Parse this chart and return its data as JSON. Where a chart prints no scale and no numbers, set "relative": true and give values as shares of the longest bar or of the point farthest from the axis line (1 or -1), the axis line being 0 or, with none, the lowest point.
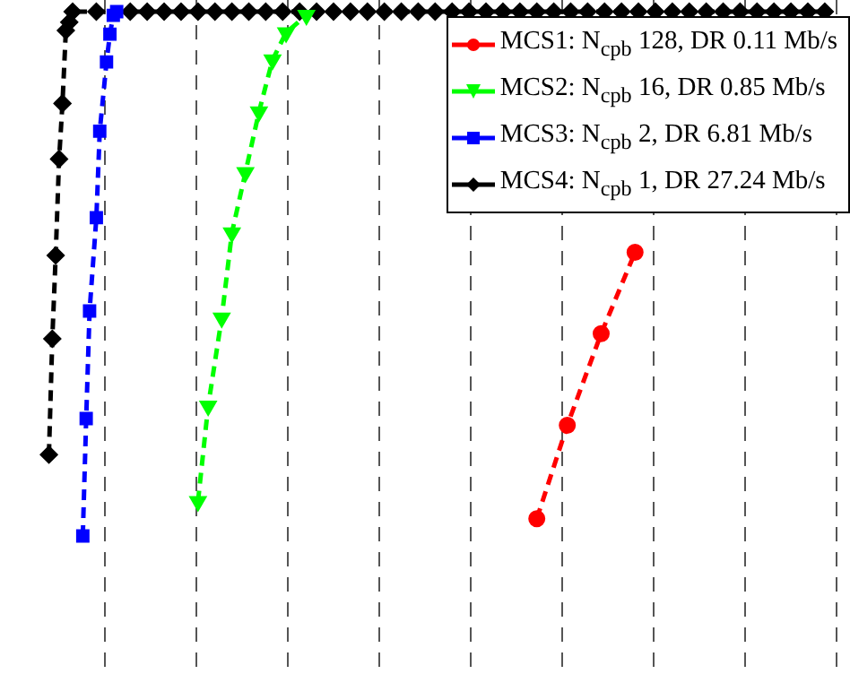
{
  "chart_data": {
    "type": "line",
    "relative": true,
    "tick_labels": false,
    "grid": "x",
    "legend": "top right",
    "line_style": "dashed",
    "categories": [
      null,
      null,
      null,
      null,
      null,
      null,
      null,
      null,
      null,
      null,
      null,
      null,
      null,
      null,
      null,
      null,
      null,
      null,
      null,
      null,
      null,
      null,
      null,
      null,
      null,
      null,
      null,
      null,
      null,
      null,
      null,
      null,
      null,
      null,
      null,
      null,
      null,
      null,
      null,
      null,
      null,
      null,
      null,
      null,
      null,
      null,
      null,
      null,
      null,
      null,
      null,
      null,
      null,
      null,
      null,
      null,
      null,
      null,
      null,
      null,
      null,
      null,
      null,
      null,
      null,
      null,
      null,
      null,
      null,
      null,
      null,
      null,
      null,
      null,
      null,
      null,
      null,
      null,
      null,
      null,
      null,
      null,
      null,
      null,
      null,
      null,
      null,
      null,
      null,
      null,
      null,
      null,
      null,
      null,
      null,
      null,
      null,
      null,
      null,
      null,
      null,
      null,
      null,
      null,
      null,
      null,
      null,
      null,
      null,
      null,
      null,
      null,
      null,
      null,
      null,
      null,
      null,
      null,
      null,
      null,
      null,
      null,
      null,
      null,
      null,
      null,
      null,
      null,
      null,
      null,
      null,
      null,
      null,
      null,
      null,
      null,
      null,
      null,
      null,
      null,
      null,
      null,
      null,
      null,
      null,
      null,
      null,
      null,
      null,
      null,
      null,
      null,
      null,
      null,
      null,
      null,
      null,
      null,
      null,
      null,
      null,
      null,
      null,
      null,
      null,
      null,
      null,
      null,
      null,
      null,
      null,
      null,
      null,
      null,
      null,
      null,
      null,
      null,
      null,
      null,
      null,
      null,
      null,
      null,
      null,
      null,
      null,
      null,
      null,
      null,
      null,
      null,
      null,
      null,
      null,
      null,
      null,
      null,
      null,
      null,
      null,
      null,
      null,
      null,
      null,
      null,
      null,
      null,
      null,
      null,
      null,
      null,
      null,
      null,
      null,
      null,
      null,
      null,
      null,
      null,
      null,
      null,
      null,
      null,
      null,
      null,
      null,
      null,
      null,
      null,
      null,
      null,
      null,
      null,
      null,
      null,
      null,
      null,
      null,
      null,
      null,
      null,
      null,
      null,
      null
    ],
    "series": [
      {
        "name": "MCS1: N$_{cpb}$ 128, DR 0.11 Mb/s",
        "color": "#ff0000",
        "marker": "circle",
        "values": [
          null,
          null,
          null,
          null,
          null,
          null,
          null,
          null,
          null,
          null,
          null,
          null,
          null,
          null,
          null,
          null,
          null,
          null,
          null,
          null,
          null,
          null,
          null,
          null,
          null,
          null,
          null,
          null,
          null,
          null,
          null,
          null,
          null,
          null,
          null,
          null,
          null,
          null,
          null,
          null,
          null,
          null,
          null,
          null,
          null,
          null,
          null,
          null,
          null,
          null,
          null,
          null,
          null,
          null,
          null,
          null,
          null,
          null,
          null,
          null,
          null,
          null,
          null,
          null,
          null,
          null,
          null,
          null,
          null,
          null,
          null,
          null,
          null,
          null,
          null,
          null,
          null,
          null,
          null,
          null,
          null,
          null,
          null,
          null,
          null,
          null,
          null,
          null,
          null,
          null,
          null,
          null,
          null,
          null,
          null,
          null,
          null,
          null,
          null,
          null,
          null,
          null,
          null,
          null,
          null,
          null,
          null,
          null,
          null,
          null,
          null,
          null,
          null,
          null,
          null,
          null,
          null,
          null,
          null,
          null,
          null,
          null,
          null,
          null,
          null,
          null,
          null,
          null,
          null,
          null,
          null,
          null,
          null,
          null,
          null,
          null,
          null,
          null,
          null,
          null,
          null,
          null,
          null,
          null,
          null,
          null,
          null,
          null,
          null,
          null,
          null,
          null,
          null,
          null,
          null,
          0.033,
          null,
          null,
          null,
          null,
          null,
          null,
          null,
          null,
          0.211,
          null,
          null,
          null,
          null,
          null,
          null,
          null,
          null,
          null,
          0.386,
          null,
          null,
          null,
          null,
          null,
          null,
          null,
          null,
          null,
          0.541,
          null,
          null,
          null,
          null,
          null,
          null,
          null,
          null,
          null,
          null,
          null,
          null,
          null,
          null,
          null,
          null,
          null,
          null,
          null,
          null,
          null,
          null,
          null,
          null,
          null,
          null,
          null,
          null,
          null,
          null,
          null,
          null,
          null,
          null,
          null,
          null,
          null,
          null,
          null,
          null,
          null,
          null,
          null,
          null,
          null,
          null,
          null,
          null,
          null,
          null,
          null,
          null,
          null,
          null,
          null,
          null,
          null,
          null,
          null,
          null
        ]
      },
      {
        "name": "MCS2: N$_{cpb}$ 16, DR 0.85 Mb/s",
        "color": "#00ff00",
        "marker": "triangle",
        "values": [
          null,
          null,
          null,
          null,
          null,
          null,
          null,
          null,
          null,
          null,
          null,
          null,
          null,
          null,
          null,
          null,
          null,
          null,
          null,
          null,
          null,
          null,
          null,
          null,
          null,
          null,
          null,
          null,
          null,
          null,
          null,
          null,
          null,
          null,
          null,
          null,
          null,
          null,
          null,
          null,
          null,
          null,
          null,
          null,
          null,
          null,
          null,
          null,
          null,
          null,
          null,
          null,
          null,
          null,
          null,
          0.066,
          null,
          null,
          0.248,
          null,
          null,
          null,
          0.416,
          null,
          null,
          0.578,
          null,
          null,
          null,
          0.693,
          null,
          null,
          null,
          0.809,
          null,
          null,
          null,
          0.908,
          null,
          null,
          null,
          0.96,
          null,
          null,
          null,
          null,
          null,
          0.993,
          null,
          null,
          null,
          null,
          null,
          null,
          null,
          null,
          null,
          null,
          null,
          null,
          null,
          null,
          null,
          null,
          null,
          null,
          null,
          null,
          null,
          null,
          null,
          null,
          null,
          null,
          null,
          null,
          null,
          null,
          null,
          null,
          null,
          null,
          null,
          null,
          null,
          null,
          null,
          null,
          null,
          null,
          null,
          null,
          null,
          null,
          null,
          null,
          null,
          null,
          null,
          null,
          null,
          null,
          null,
          null,
          null,
          null,
          null,
          null,
          null,
          null,
          null,
          null,
          null,
          null,
          null,
          null,
          null,
          null,
          null,
          null,
          null,
          null,
          null,
          null,
          null,
          null,
          null,
          null,
          null,
          null,
          null,
          null,
          null,
          null,
          null,
          null,
          null,
          null,
          null,
          null,
          null,
          null,
          null,
          null,
          null,
          null,
          null,
          null,
          null,
          null,
          null,
          null,
          null,
          null,
          null,
          null,
          null,
          null,
          null,
          null,
          null,
          null,
          null,
          null,
          null,
          null,
          null,
          null,
          null,
          null,
          null,
          null,
          null,
          null,
          null,
          null,
          null,
          null,
          null,
          null,
          null,
          null,
          null,
          null,
          null,
          null,
          null,
          null,
          null,
          null,
          null,
          null,
          null,
          null,
          null,
          null,
          null,
          null,
          null,
          null,
          null,
          null,
          null,
          null,
          null
        ]
      },
      {
        "name": "MCS3: N$_{cpb}$ 2, DR 6.81 Mb/s",
        "color": "#0000ff",
        "marker": "square",
        "values": [
          null,
          null,
          null,
          null,
          null,
          null,
          null,
          null,
          null,
          null,
          null,
          null,
          null,
          null,
          null,
          null,
          null,
          null,
          null,
          null,
          null,
          0,
          0.224,
          0.429,
          null,
          0.607,
          0.772,
          null,
          0.904,
          0.957,
          0.993,
          1,
          null,
          null,
          null,
          null,
          null,
          null,
          null,
          null,
          null,
          null,
          null,
          null,
          null,
          null,
          null,
          null,
          null,
          null,
          null,
          null,
          null,
          null,
          null,
          null,
          null,
          null,
          null,
          null,
          null,
          null,
          null,
          null,
          null,
          null,
          null,
          null,
          null,
          null,
          null,
          null,
          null,
          null,
          null,
          null,
          null,
          null,
          null,
          null,
          null,
          null,
          null,
          null,
          null,
          null,
          null,
          null,
          null,
          null,
          null,
          null,
          null,
          null,
          null,
          null,
          null,
          null,
          null,
          null,
          null,
          null,
          null,
          null,
          null,
          null,
          null,
          null,
          null,
          null,
          null,
          null,
          null,
          null,
          null,
          null,
          null,
          null,
          null,
          null,
          null,
          null,
          null,
          null,
          null,
          null,
          null,
          null,
          null,
          null,
          null,
          null,
          null,
          null,
          null,
          null,
          null,
          null,
          null,
          null,
          null,
          null,
          null,
          null,
          null,
          null,
          null,
          null,
          null,
          null,
          null,
          null,
          null,
          null,
          null,
          null,
          null,
          null,
          null,
          null,
          null,
          null,
          null,
          null,
          null,
          null,
          null,
          null,
          null,
          null,
          null,
          null,
          null,
          null,
          null,
          null,
          null,
          null,
          null,
          null,
          null,
          null,
          null,
          null,
          null,
          null,
          null,
          null,
          null,
          null,
          null,
          null,
          null,
          null,
          null,
          null,
          null,
          null,
          null,
          null,
          null,
          null,
          null,
          null,
          null,
          null,
          null,
          null,
          null,
          null,
          null,
          null,
          null,
          null,
          null,
          null,
          null,
          null,
          null,
          null,
          null,
          null,
          null,
          null,
          null,
          null,
          null,
          null,
          null,
          null,
          null,
          null,
          null,
          null,
          null,
          null,
          null,
          null,
          null,
          null,
          null,
          null,
          null,
          null,
          null
        ]
      },
      {
        "name": "MCS4: N$_{cpb}$ 1, DR 27.24 Mb/s",
        "color": "#000000",
        "marker": "diamond",
        "values": [
          null,
          null,
          null,
          null,
          null,
          null,
          null,
          null,
          null,
          null,
          null,
          0.155,
          0.376,
          0.535,
          0.719,
          0.825,
          0.964,
          0.98,
          1,
          null,
          null,
          null,
          null,
          null,
          null,
          1,
          null,
          null,
          null,
          null,
          null,
          null,
          null,
          null,
          null,
          1,
          null,
          null,
          null,
          null,
          1,
          null,
          null,
          null,
          null,
          1,
          null,
          null,
          null,
          null,
          1,
          null,
          null,
          null,
          null,
          1,
          null,
          null,
          null,
          null,
          1,
          null,
          null,
          null,
          null,
          1,
          null,
          null,
          null,
          null,
          1,
          null,
          null,
          null,
          null,
          1,
          null,
          null,
          null,
          null,
          1,
          null,
          null,
          null,
          null,
          1,
          null,
          null,
          null,
          null,
          1,
          null,
          null,
          null,
          null,
          1,
          null,
          null,
          null,
          null,
          1,
          null,
          null,
          null,
          null,
          1,
          null,
          null,
          null,
          null,
          1,
          null,
          null,
          null,
          null,
          1,
          null,
          null,
          null,
          null,
          1,
          null,
          null,
          null,
          null,
          1,
          null,
          null,
          null,
          null,
          1,
          null,
          null,
          null,
          null,
          1,
          null,
          null,
          null,
          null,
          1,
          null,
          null,
          null,
          null,
          1,
          null,
          null,
          null,
          null,
          1,
          null,
          null,
          null,
          null,
          1,
          null,
          null,
          null,
          null,
          1,
          null,
          null,
          null,
          null,
          1,
          null,
          null,
          null,
          null,
          1,
          null,
          null,
          null,
          null,
          1,
          null,
          null,
          null,
          null,
          1,
          null,
          null,
          null,
          null,
          1,
          null,
          null,
          null,
          null,
          1,
          null,
          null,
          null,
          null,
          1,
          null,
          null,
          null,
          null,
          1,
          null,
          null,
          null,
          null,
          1,
          null,
          null,
          null,
          null,
          1,
          null,
          null,
          null,
          null,
          1,
          null,
          null,
          null,
          null,
          1,
          null,
          null,
          null,
          null,
          1,
          null,
          null,
          null,
          null,
          1,
          null,
          null,
          null,
          null,
          1,
          null,
          null,
          null,
          null,
          1,
          null,
          null,
          null,
          null
        ]
      }
    ]
  }
}
